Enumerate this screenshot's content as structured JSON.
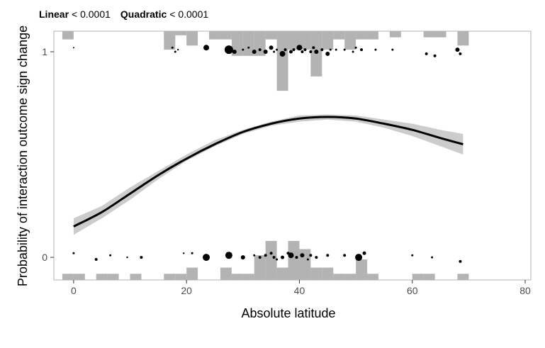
{
  "chart_data": {
    "type": "line",
    "title_parts": [
      {
        "label": "Linear",
        "value": "< 0.0001"
      },
      {
        "label": "Quadratic",
        "value": "< 0.0001"
      }
    ],
    "xlabel": "Absolute latitude",
    "ylabel": "Probability of interaction outcome sign change",
    "xlim": [
      -3.5,
      81
    ],
    "ylim": [
      -0.11,
      1.1
    ],
    "xticks": [
      0,
      20,
      40,
      60,
      80
    ],
    "yticks": [
      0,
      1
    ],
    "grid": false,
    "curve": {
      "x": [
        0,
        5,
        10,
        15,
        20,
        25,
        30,
        35,
        40,
        45,
        50,
        55,
        60,
        65,
        69
      ],
      "y": [
        0.15,
        0.22,
        0.31,
        0.4,
        0.48,
        0.55,
        0.61,
        0.65,
        0.675,
        0.683,
        0.675,
        0.65,
        0.62,
        0.58,
        0.55
      ],
      "lower": [
        0.11,
        0.19,
        0.28,
        0.38,
        0.47,
        0.54,
        0.6,
        0.64,
        0.66,
        0.67,
        0.66,
        0.63,
        0.59,
        0.54,
        0.5
      ],
      "upper": [
        0.19,
        0.25,
        0.34,
        0.42,
        0.5,
        0.57,
        0.62,
        0.66,
        0.69,
        0.695,
        0.69,
        0.67,
        0.65,
        0.62,
        0.6
      ]
    },
    "histogram_top": {
      "bin_width": 2,
      "bins": [
        {
          "x0": -2,
          "h": 0.04
        },
        {
          "x0": 16,
          "h": 0.05
        },
        {
          "x0": 16,
          "h": 0.09
        },
        {
          "x0": 18,
          "h": 0.02
        },
        {
          "x0": 20,
          "h": 0.07
        },
        {
          "x0": 24,
          "h": 0.04
        },
        {
          "x0": 26,
          "h": 0.04
        },
        {
          "x0": 28,
          "h": 0.12
        },
        {
          "x0": 30,
          "h": 0.12
        },
        {
          "x0": 32,
          "h": 0.12
        },
        {
          "x0": 34,
          "h": 0.04
        },
        {
          "x0": 36,
          "h": 0.29
        },
        {
          "x0": 38,
          "h": 0.09
        },
        {
          "x0": 40,
          "h": 0.09
        },
        {
          "x0": 42,
          "h": 0.22
        },
        {
          "x0": 44,
          "h": 0.09
        },
        {
          "x0": 46,
          "h": 0.04
        },
        {
          "x0": 48,
          "h": 0.09
        },
        {
          "x0": 50,
          "h": 0.04
        },
        {
          "x0": 52,
          "h": 0.04
        },
        {
          "x0": 56,
          "h": 0.03
        },
        {
          "x0": 62,
          "h": 0.03
        },
        {
          "x0": 64,
          "h": 0.03
        },
        {
          "x0": 68,
          "h": 0.07
        }
      ]
    },
    "histogram_bottom": {
      "bin_width": 2,
      "bins": [
        {
          "x0": -2,
          "h": 0.03
        },
        {
          "x0": 0,
          "h": 0.03
        },
        {
          "x0": 4,
          "h": 0.03
        },
        {
          "x0": 6,
          "h": 0.03
        },
        {
          "x0": 10,
          "h": 0.03
        },
        {
          "x0": 16,
          "h": 0.03
        },
        {
          "x0": 18,
          "h": 0.03
        },
        {
          "x0": 20,
          "h": 0.06
        },
        {
          "x0": 26,
          "h": 0.06
        },
        {
          "x0": 28,
          "h": 0.03
        },
        {
          "x0": 30,
          "h": 0.03
        },
        {
          "x0": 32,
          "h": 0.12
        },
        {
          "x0": 34,
          "h": 0.19
        },
        {
          "x0": 36,
          "h": 0.06
        },
        {
          "x0": 38,
          "h": 0.19
        },
        {
          "x0": 40,
          "h": 0.15
        },
        {
          "x0": 42,
          "h": 0.06
        },
        {
          "x0": 44,
          "h": 0.06
        },
        {
          "x0": 46,
          "h": 0.03
        },
        {
          "x0": 48,
          "h": 0.03
        },
        {
          "x0": 50,
          "h": 0.1
        },
        {
          "x0": 52,
          "h": 0.03
        },
        {
          "x0": 60,
          "h": 0.03
        },
        {
          "x0": 62,
          "h": 0.03
        },
        {
          "x0": 68,
          "h": 0.03
        }
      ]
    },
    "points_top": [
      {
        "x": 0,
        "y": 1.02,
        "s": 1
      },
      {
        "x": 18,
        "y": 1.0,
        "s": 1.5
      },
      {
        "x": 17.5,
        "y": 1.02,
        "s": 1.5
      },
      {
        "x": 18.5,
        "y": 1.01,
        "s": 1.2
      },
      {
        "x": 23.5,
        "y": 1.02,
        "s": 4
      },
      {
        "x": 27.5,
        "y": 1.01,
        "s": 6
      },
      {
        "x": 28.5,
        "y": 1.0,
        "s": 3
      },
      {
        "x": 30,
        "y": 1.01,
        "s": 1.5
      },
      {
        "x": 31,
        "y": 1.02,
        "s": 1.5
      },
      {
        "x": 32,
        "y": 1.0,
        "s": 3
      },
      {
        "x": 33,
        "y": 1.01,
        "s": 2
      },
      {
        "x": 34,
        "y": 1.0,
        "s": 3
      },
      {
        "x": 35,
        "y": 1.02,
        "s": 3
      },
      {
        "x": 35.5,
        "y": 1.0,
        "s": 1.5
      },
      {
        "x": 36,
        "y": 1.01,
        "s": 1.5
      },
      {
        "x": 37,
        "y": 0.99,
        "s": 4
      },
      {
        "x": 37.5,
        "y": 1.01,
        "s": 2
      },
      {
        "x": 38.5,
        "y": 1.0,
        "s": 2.5
      },
      {
        "x": 39,
        "y": 1.01,
        "s": 2
      },
      {
        "x": 40,
        "y": 1.02,
        "s": 4
      },
      {
        "x": 40.5,
        "y": 1.0,
        "s": 2
      },
      {
        "x": 41,
        "y": 1.01,
        "s": 2
      },
      {
        "x": 42,
        "y": 1.0,
        "s": 2
      },
      {
        "x": 42.5,
        "y": 1.02,
        "s": 2
      },
      {
        "x": 43,
        "y": 1.0,
        "s": 3
      },
      {
        "x": 44,
        "y": 1.01,
        "s": 2
      },
      {
        "x": 45,
        "y": 0.99,
        "s": 3
      },
      {
        "x": 45.5,
        "y": 1.01,
        "s": 1.5
      },
      {
        "x": 46.5,
        "y": 1.01,
        "s": 1.5
      },
      {
        "x": 48,
        "y": 1.01,
        "s": 1.5
      },
      {
        "x": 49.5,
        "y": 1.0,
        "s": 1.5
      },
      {
        "x": 50,
        "y": 1.02,
        "s": 1.5
      },
      {
        "x": 51,
        "y": 1.01,
        "s": 2
      },
      {
        "x": 53.5,
        "y": 1.01,
        "s": 1.5
      },
      {
        "x": 56.5,
        "y": 1.01,
        "s": 1.5
      },
      {
        "x": 62.5,
        "y": 0.99,
        "s": 2
      },
      {
        "x": 64,
        "y": 0.98,
        "s": 2
      },
      {
        "x": 68,
        "y": 1.01,
        "s": 3
      },
      {
        "x": 68.5,
        "y": 0.99,
        "s": 2
      }
    ],
    "points_bottom": [
      {
        "x": 0,
        "y": 0.02,
        "s": 1.5
      },
      {
        "x": 4,
        "y": -0.01,
        "s": 2
      },
      {
        "x": 6.5,
        "y": 0.01,
        "s": 1.5
      },
      {
        "x": 9.5,
        "y": 0.0,
        "s": 1.2
      },
      {
        "x": 12,
        "y": 0.0,
        "s": 2
      },
      {
        "x": 19.5,
        "y": 0.02,
        "s": 1.2
      },
      {
        "x": 21,
        "y": 0.02,
        "s": 1.5
      },
      {
        "x": 23.5,
        "y": 0.0,
        "s": 5
      },
      {
        "x": 27.5,
        "y": 0.01,
        "s": 5
      },
      {
        "x": 30,
        "y": 0.0,
        "s": 3
      },
      {
        "x": 32,
        "y": 0.01,
        "s": 1.5
      },
      {
        "x": 33,
        "y": 0.0,
        "s": 2
      },
      {
        "x": 34,
        "y": 0.01,
        "s": 2
      },
      {
        "x": 35,
        "y": 0.02,
        "s": 2
      },
      {
        "x": 35.5,
        "y": 0.0,
        "s": 2
      },
      {
        "x": 36,
        "y": -0.01,
        "s": 1.5
      },
      {
        "x": 37,
        "y": 0.0,
        "s": 2.5
      },
      {
        "x": 38,
        "y": 0.02,
        "s": 2
      },
      {
        "x": 38.5,
        "y": 0.01,
        "s": 4
      },
      {
        "x": 39.5,
        "y": 0.0,
        "s": 2
      },
      {
        "x": 40.5,
        "y": 0.01,
        "s": 3
      },
      {
        "x": 41.5,
        "y": -0.01,
        "s": 1.5
      },
      {
        "x": 42,
        "y": 0.01,
        "s": 2
      },
      {
        "x": 43,
        "y": 0.0,
        "s": 2
      },
      {
        "x": 45,
        "y": 0.01,
        "s": 2
      },
      {
        "x": 48,
        "y": 0.01,
        "s": 2
      },
      {
        "x": 50.5,
        "y": 0.0,
        "s": 5
      },
      {
        "x": 51.5,
        "y": 0.02,
        "s": 2.5
      },
      {
        "x": 60,
        "y": 0.01,
        "s": 1.5
      },
      {
        "x": 63.5,
        "y": 0.0,
        "s": 1.5
      },
      {
        "x": 68.5,
        "y": -0.02,
        "s": 2
      }
    ]
  }
}
